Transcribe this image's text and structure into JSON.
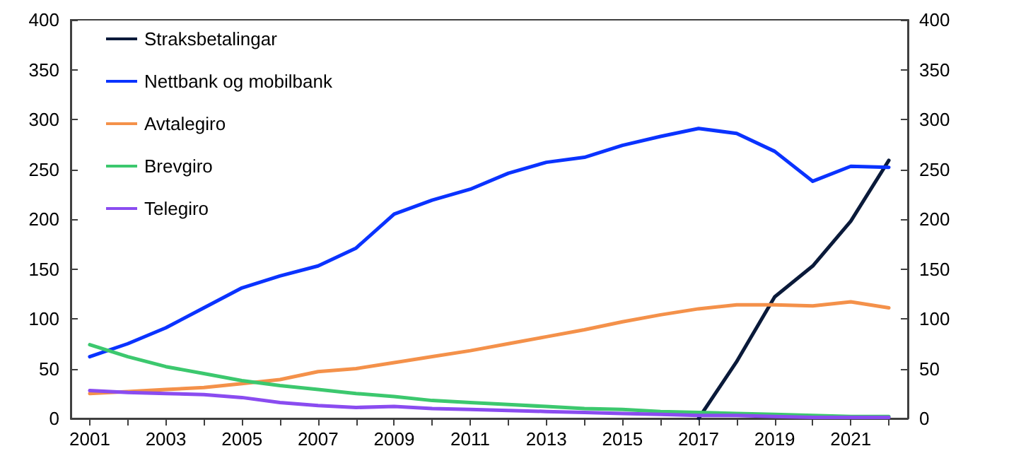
{
  "chart_data": {
    "type": "line",
    "x": [
      2001,
      2002,
      2003,
      2004,
      2005,
      2006,
      2007,
      2008,
      2009,
      2010,
      2011,
      2012,
      2013,
      2014,
      2015,
      2016,
      2017,
      2018,
      2019,
      2020,
      2021,
      2022
    ],
    "series": [
      {
        "name": "Straksbetalingar",
        "color": "#0a1a3a",
        "values": [
          null,
          null,
          null,
          null,
          null,
          null,
          null,
          null,
          null,
          null,
          null,
          null,
          null,
          null,
          null,
          null,
          0,
          57,
          122,
          153,
          198,
          259
        ]
      },
      {
        "name": "Nettbank og mobilbank",
        "color": "#0a33ff",
        "values": [
          62,
          75,
          91,
          111,
          131,
          143,
          153,
          171,
          205,
          219,
          230,
          246,
          257,
          262,
          274,
          283,
          291,
          286,
          268,
          238,
          253,
          252
        ]
      },
      {
        "name": "Avtalegiro",
        "color": "#f4914a",
        "values": [
          25,
          27,
          29,
          31,
          35,
          39,
          47,
          50,
          56,
          62,
          68,
          75,
          82,
          89,
          97,
          104,
          110,
          114,
          114,
          113,
          117,
          111
        ]
      },
      {
        "name": "Brevgiro",
        "color": "#3cc86e",
        "values": [
          74,
          62,
          52,
          45,
          38,
          33,
          29,
          25,
          22,
          18,
          16,
          14,
          12,
          10,
          9,
          7,
          6,
          5,
          4,
          3,
          2,
          2
        ]
      },
      {
        "name": "Telegiro",
        "color": "#8a4cf0",
        "values": [
          28,
          26,
          25,
          24,
          21,
          16,
          13,
          11,
          12,
          10,
          9,
          8,
          7,
          6,
          5,
          4,
          3,
          3,
          2,
          1,
          1,
          1
        ]
      }
    ],
    "xlim": [
      2000.5,
      2022.5
    ],
    "xticks": [
      2001,
      {
        "value": 2002,
        "label": null
      },
      2003,
      {
        "value": 2004,
        "label": null
      },
      2005,
      {
        "value": 2006,
        "label": null
      },
      2007,
      {
        "value": 2008,
        "label": null
      },
      2009,
      {
        "value": 2010,
        "label": null
      },
      2011,
      {
        "value": 2012,
        "label": null
      },
      2013,
      {
        "value": 2014,
        "label": null
      },
      2015,
      {
        "value": 2016,
        "label": null
      },
      2017,
      {
        "value": 2018,
        "label": null
      },
      2019,
      {
        "value": 2020,
        "label": null
      },
      2021,
      {
        "value": 2022,
        "label": null
      }
    ],
    "ylim": [
      0,
      400
    ],
    "yticks": [
      0,
      50,
      100,
      150,
      200,
      250,
      300,
      350,
      400
    ],
    "y2lim": [
      0,
      400
    ],
    "y2ticks": [
      0,
      50,
      100,
      150,
      200,
      250,
      300,
      350,
      400
    ],
    "legend": "top left",
    "grid": false,
    "marker": "none",
    "line_style": "solid"
  }
}
